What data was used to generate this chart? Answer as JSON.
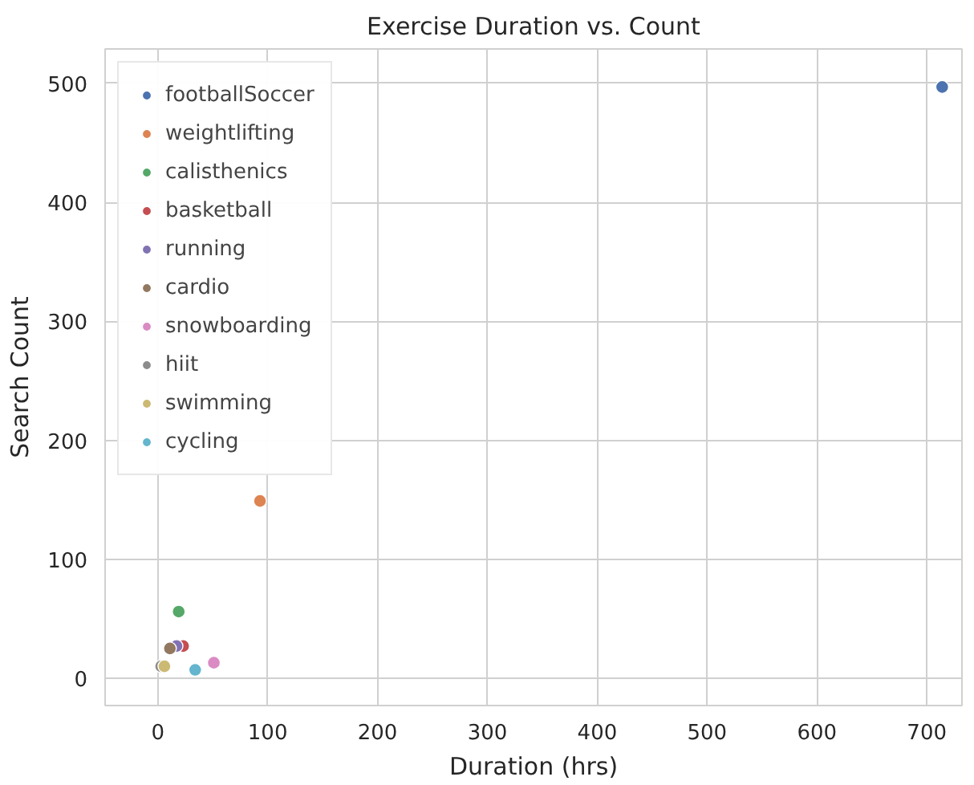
{
  "chart_data": {
    "type": "scatter",
    "title": "Exercise Duration vs. Count",
    "xlabel": "Duration (hrs)",
    "ylabel": "Search Count",
    "xlim": [
      -48,
      732
    ],
    "ylim": [
      -23,
      529
    ],
    "xticks": [
      0,
      100,
      200,
      300,
      400,
      500,
      600,
      700
    ],
    "yticks": [
      0,
      100,
      200,
      300,
      400,
      500
    ],
    "grid": true,
    "legend": "top left",
    "marker": "circle",
    "series": [
      {
        "name": "footballSoccer",
        "color": "#4c72b0",
        "x": [
          714
        ],
        "values": [
          497
        ]
      },
      {
        "name": "weightlifting",
        "color": "#dd8452",
        "x": [
          93
        ],
        "values": [
          149
        ]
      },
      {
        "name": "calisthenics",
        "color": "#55a868",
        "x": [
          19
        ],
        "values": [
          56
        ]
      },
      {
        "name": "basketball",
        "color": "#c44e52",
        "x": [
          23
        ],
        "values": [
          27
        ]
      },
      {
        "name": "running",
        "color": "#8172b3",
        "x": [
          17
        ],
        "values": [
          27
        ]
      },
      {
        "name": "cardio",
        "color": "#937860",
        "x": [
          11
        ],
        "values": [
          25
        ]
      },
      {
        "name": "snowboarding",
        "color": "#da8bc3",
        "x": [
          51
        ],
        "values": [
          13
        ]
      },
      {
        "name": "hiit",
        "color": "#8c8c8c",
        "x": [
          3
        ],
        "values": [
          10
        ]
      },
      {
        "name": "swimming",
        "color": "#ccb974",
        "x": [
          6
        ],
        "values": [
          10
        ]
      },
      {
        "name": "cycling",
        "color": "#64b5cd",
        "x": [
          34
        ],
        "values": [
          7
        ]
      }
    ]
  }
}
